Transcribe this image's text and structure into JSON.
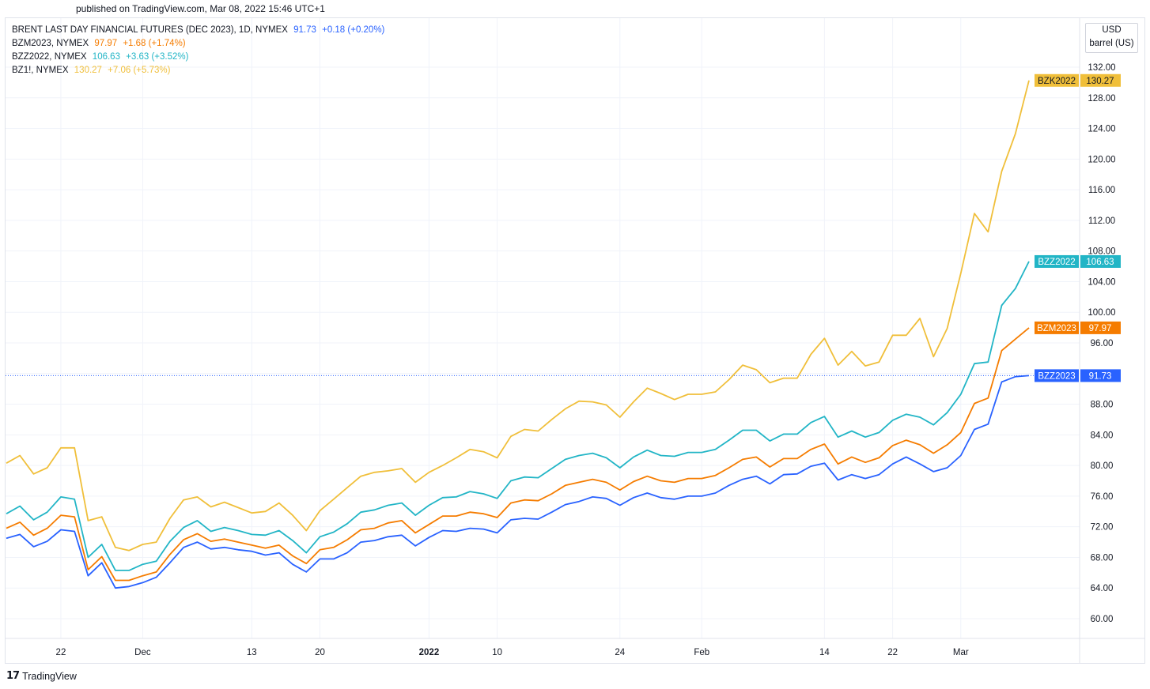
{
  "header": {
    "published": "published on TradingView.com, Mar 08, 2022 15:46 UTC+1"
  },
  "legend": [
    {
      "symbol": "BRENT LAST DAY FINANCIAL FUTURES (DEC 2023), 1D, NYMEX",
      "last": "91.73",
      "change": "+0.18 (+0.20%)",
      "color": "#2962ff"
    },
    {
      "symbol": "BZM2023, NYMEX",
      "last": "97.97",
      "change": "+1.68 (+1.74%)",
      "color": "#f57c00"
    },
    {
      "symbol": "BZZ2022, NYMEX",
      "last": "106.63",
      "change": "+3.63 (+3.52%)",
      "color": "#22b5c6"
    },
    {
      "symbol": "BZ1!, NYMEX",
      "last": "130.27",
      "change": "+7.06 (+5.73%)",
      "color": "#f0bf3a"
    }
  ],
  "unit_box": {
    "currency": "USD",
    "unit": "barrel (US)"
  },
  "footer": {
    "brand": "TradingView",
    "logo_glyph": "17"
  },
  "chart_data": {
    "type": "line",
    "title": "",
    "xlabel": "",
    "ylabel": "",
    "ylim": [
      57,
      134
    ],
    "yticks": [
      "132.00",
      "128.00",
      "124.00",
      "120.00",
      "116.00",
      "112.00",
      "108.00",
      "104.00",
      "100.00",
      "96.00",
      "92.00",
      "88.00",
      "84.00",
      "80.00",
      "76.00",
      "72.00",
      "68.00",
      "64.00",
      "60.00"
    ],
    "xticks": [
      "22",
      "Dec",
      "13",
      "20",
      "2022",
      "10",
      "24",
      "Feb",
      "14",
      "22",
      "Mar"
    ],
    "xtick_positions": [
      4,
      10,
      18,
      23,
      31,
      36,
      45,
      51,
      60,
      65,
      70
    ],
    "current_line_value": 91.73,
    "series": [
      {
        "name": "BZK2022",
        "color": "#f0bf3a",
        "last_label": "130.27",
        "values": [
          80.3,
          81.3,
          78.9,
          79.7,
          82.3,
          82.3,
          72.8,
          73.3,
          69.3,
          68.9,
          69.7,
          70.0,
          73.1,
          75.5,
          75.9,
          74.6,
          75.2,
          74.5,
          73.8,
          74.0,
          75.1,
          73.5,
          71.5,
          74.1,
          75.6,
          77.1,
          78.6,
          79.1,
          79.3,
          79.6,
          77.8,
          79.1,
          80.0,
          81.0,
          82.1,
          81.8,
          81.0,
          83.8,
          84.7,
          84.5,
          86.0,
          87.4,
          88.4,
          88.3,
          87.9,
          86.3,
          88.3,
          90.1,
          89.4,
          88.6,
          89.3,
          89.3,
          89.6,
          91.2,
          93.1,
          92.5,
          90.8,
          91.4,
          91.4,
          94.5,
          96.6,
          93.1,
          94.9,
          93.0,
          93.5,
          97.0,
          97.0,
          99.2,
          94.2,
          97.9,
          105.1,
          112.9,
          110.5,
          118.4,
          123.3,
          130.27
        ]
      },
      {
        "name": "BZZ2022",
        "color": "#22b5c6",
        "last_label": "106.63",
        "values": [
          73.7,
          74.7,
          72.9,
          73.9,
          75.9,
          75.6,
          68.0,
          69.7,
          66.3,
          66.3,
          67.1,
          67.5,
          70.1,
          71.9,
          72.8,
          71.4,
          71.9,
          71.5,
          71.0,
          70.9,
          71.5,
          70.2,
          68.6,
          70.7,
          71.3,
          72.4,
          73.9,
          74.2,
          74.8,
          75.1,
          73.5,
          74.8,
          75.8,
          75.9,
          76.6,
          76.3,
          75.7,
          78.0,
          78.5,
          78.4,
          79.6,
          80.8,
          81.3,
          81.6,
          81.0,
          79.7,
          81.1,
          82.0,
          81.3,
          81.2,
          81.7,
          81.7,
          82.1,
          83.3,
          84.6,
          84.6,
          83.2,
          84.1,
          84.1,
          85.6,
          86.4,
          83.7,
          84.5,
          83.7,
          84.3,
          85.9,
          86.7,
          86.3,
          85.3,
          86.9,
          89.3,
          93.3,
          93.5,
          100.9,
          103.1,
          106.63
        ]
      },
      {
        "name": "BZM2023",
        "color": "#f57c00",
        "last_label": "97.97",
        "values": [
          71.8,
          72.6,
          70.9,
          71.8,
          73.5,
          73.3,
          66.4,
          68.1,
          65.0,
          65.0,
          65.6,
          66.1,
          68.4,
          70.3,
          71.1,
          70.1,
          70.4,
          70.0,
          69.6,
          69.2,
          69.6,
          68.2,
          67.2,
          69.0,
          69.3,
          70.3,
          71.6,
          71.8,
          72.5,
          72.8,
          71.2,
          72.3,
          73.4,
          73.4,
          73.9,
          73.7,
          73.2,
          75.1,
          75.5,
          75.4,
          76.3,
          77.4,
          77.8,
          78.2,
          77.8,
          76.8,
          77.9,
          78.6,
          78.0,
          77.8,
          78.3,
          78.3,
          78.7,
          79.7,
          80.8,
          81.1,
          79.8,
          80.9,
          80.9,
          82.1,
          82.8,
          80.2,
          81.1,
          80.4,
          81.0,
          82.6,
          83.3,
          82.7,
          81.6,
          82.7,
          84.3,
          88.1,
          88.8,
          95.0,
          96.5,
          97.97
        ]
      },
      {
        "name": "BZZ2023",
        "color": "#2962ff",
        "last_label": "91.73",
        "values": [
          70.5,
          71.0,
          69.4,
          70.1,
          71.6,
          71.4,
          65.6,
          67.3,
          64.0,
          64.2,
          64.7,
          65.4,
          67.3,
          69.3,
          70.0,
          69.1,
          69.3,
          69.0,
          68.8,
          68.3,
          68.6,
          67.1,
          66.1,
          67.8,
          67.8,
          68.6,
          70.0,
          70.2,
          70.7,
          70.9,
          69.5,
          70.6,
          71.5,
          71.4,
          71.8,
          71.7,
          71.2,
          72.9,
          73.1,
          73.0,
          73.9,
          74.9,
          75.3,
          75.9,
          75.7,
          74.8,
          75.8,
          76.4,
          75.8,
          75.6,
          76.0,
          76.0,
          76.4,
          77.4,
          78.2,
          78.6,
          77.6,
          78.8,
          78.9,
          79.9,
          80.3,
          78.1,
          78.8,
          78.3,
          78.8,
          80.2,
          81.1,
          80.2,
          79.2,
          79.7,
          81.3,
          84.7,
          85.4,
          90.9,
          91.6,
          91.73
        ]
      }
    ]
  }
}
